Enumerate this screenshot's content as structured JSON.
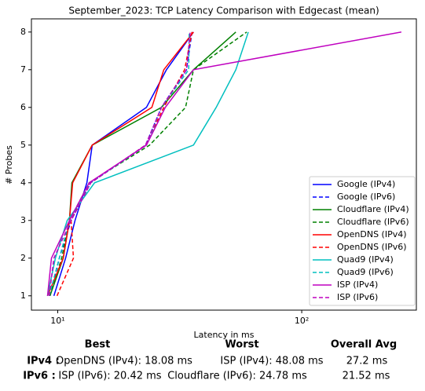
{
  "chart_data": {
    "type": "line",
    "title": "September_2023: TCP Latency Comparison with Edgecast (mean)",
    "x_label": "Latency in ms",
    "y_label": "# Probes",
    "log_x": true,
    "legend": "lower right",
    "xlim": [
      7.8,
      295
    ],
    "ylim": [
      0.62,
      8.35
    ],
    "xticks": [
      {
        "value": 10,
        "label": "10¹"
      },
      {
        "value": 100,
        "label": "10²"
      }
    ],
    "yticks": [
      1,
      2,
      3,
      4,
      5,
      6,
      7,
      8
    ],
    "y": [
      1,
      2,
      3,
      4,
      5,
      6,
      7,
      8
    ],
    "series": [
      {
        "name": "Google (IPv4)",
        "color": "#0000ff",
        "linestyle": "solid",
        "values": [
          9.64,
          10.77,
          11.77,
          13.16,
          13.85,
          23.1,
          27.9,
          36.0
        ]
      },
      {
        "name": "Google (IPv6)",
        "color": "#0000ff",
        "linestyle": "dashed",
        "values": [
          9.29,
          10.15,
          11.34,
          13.65,
          22.9,
          26.6,
          33.7,
          35.5
        ]
      },
      {
        "name": "Cloudflare (IPv4)",
        "color": "#008000",
        "linestyle": "solid",
        "values": [
          9.29,
          10.53,
          11.17,
          11.43,
          13.85,
          26.6,
          36.0,
          53.7
        ]
      },
      {
        "name": "Cloudflare (IPv6)",
        "color": "#008000",
        "linestyle": "dashed",
        "values": [
          9.29,
          10.38,
          11.17,
          13.45,
          23.8,
          33.4,
          36.0,
          59.5
        ]
      },
      {
        "name": "OpenDNS (IPv4)",
        "color": "#ff0000",
        "linestyle": "solid",
        "values": [
          9.08,
          10.53,
          11.17,
          11.51,
          13.85,
          24.3,
          27.2,
          36.0
        ]
      },
      {
        "name": "OpenDNS (IPv6)",
        "color": "#ff0000",
        "linestyle": "dashed",
        "values": [
          9.93,
          11.6,
          11.34,
          13.65,
          22.9,
          27.2,
          33.1,
          35.5
        ]
      },
      {
        "name": "Quad9 (IPv4)",
        "color": "#00bfbf",
        "linestyle": "solid",
        "values": [
          9.08,
          9.78,
          10.93,
          14.16,
          36.0,
          44.6,
          53.7,
          60.4
        ]
      },
      {
        "name": "Quad9 (IPv6)",
        "color": "#00bfbf",
        "linestyle": "dashed",
        "values": [
          9.22,
          10.15,
          11.17,
          13.65,
          23.1,
          26.6,
          34.4,
          34.6
        ]
      },
      {
        "name": "ISP (IPv4)",
        "color": "#bf00bf",
        "linestyle": "solid",
        "values": [
          9.08,
          9.42,
          11.17,
          13.45,
          23.1,
          27.6,
          36.0,
          256
        ]
      },
      {
        "name": "ISP (IPv6)",
        "color": "#bf00bf",
        "linestyle": "dashed",
        "values": [
          9.22,
          9.64,
          11.34,
          13.65,
          22.9,
          26.6,
          33.7,
          34.9
        ]
      }
    ],
    "summary": {
      "headers": [
        "Best",
        "Worst",
        "Overall Avg"
      ],
      "rows": [
        [
          "IPv4 :",
          "OpenDNS (IPv4): 18.08 ms",
          "ISP (IPv4): 48.08 ms",
          "27.2 ms"
        ],
        [
          "IPv6 :",
          "ISP (IPv6): 20.42 ms",
          "Cloudflare (IPv6): 24.78 ms",
          "21.52 ms"
        ]
      ]
    }
  }
}
